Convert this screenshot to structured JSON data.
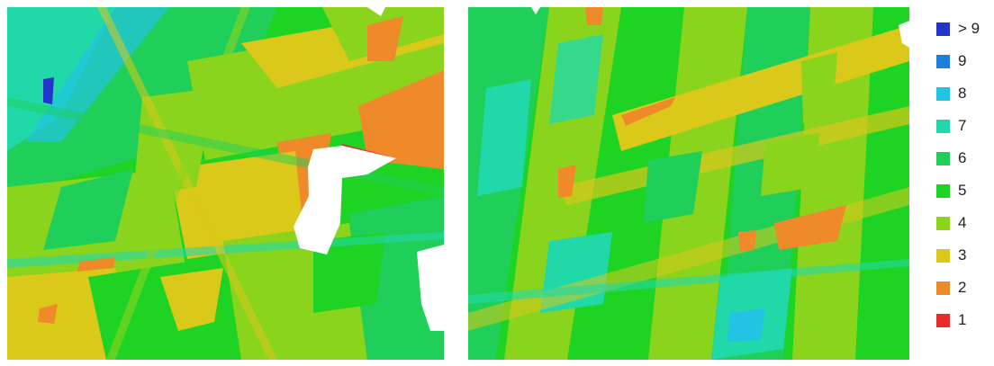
{
  "legend": {
    "items": [
      {
        "label": "> 9",
        "color": "#2335c8"
      },
      {
        "label": "9",
        "color": "#1f7fd6"
      },
      {
        "label": "8",
        "color": "#22c3e3"
      },
      {
        "label": "7",
        "color": "#21d8a8"
      },
      {
        "label": "6",
        "color": "#1fcf5a"
      },
      {
        "label": "5",
        "color": "#1ed324"
      },
      {
        "label": "4",
        "color": "#8ad41e"
      },
      {
        "label": "3",
        "color": "#dac81a"
      },
      {
        "label": "2",
        "color": "#ef8a2a"
      },
      {
        "label": "1",
        "color": "#ea2b2b"
      }
    ]
  }
}
